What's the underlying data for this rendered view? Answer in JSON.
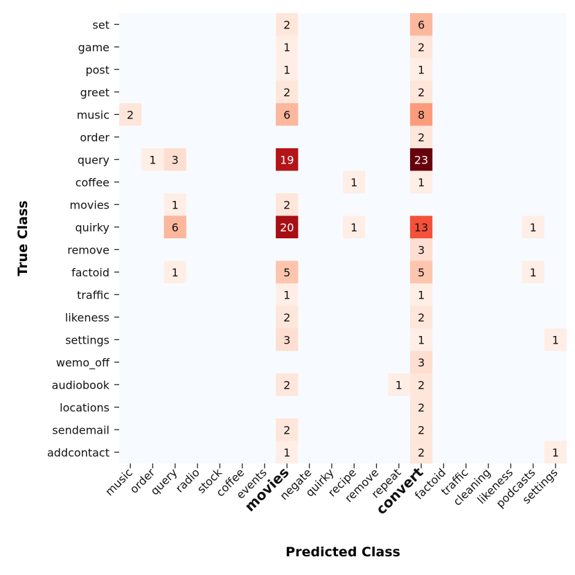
{
  "chart_data": {
    "type": "heatmap",
    "xlabel": "Predicted Class",
    "ylabel": "True Class",
    "x_categories": [
      "music",
      "order",
      "query",
      "radio",
      "stock",
      "coffee",
      "events",
      "movies",
      "negate",
      "quirky",
      "recipe",
      "remove",
      "repeat",
      "convert",
      "factoid",
      "traffic",
      "cleaning",
      "likeness",
      "podcasts",
      "settings"
    ],
    "y_categories": [
      "set",
      "game",
      "post",
      "greet",
      "music",
      "order",
      "query",
      "coffee",
      "movies",
      "quirky",
      "remove",
      "factoid",
      "traffic",
      "likeness",
      "settings",
      "wemo_off",
      "audiobook",
      "locations",
      "sendemail",
      "addcontact"
    ],
    "highlighted_x": [
      "movies",
      "convert"
    ],
    "highlight_color": "#ff0000",
    "colormap": "Reds",
    "background_color": "#f7fbff",
    "value_range": [
      0,
      23
    ],
    "cells": [
      {
        "x": "movies",
        "y": "set",
        "value": 2
      },
      {
        "x": "convert",
        "y": "set",
        "value": 6
      },
      {
        "x": "movies",
        "y": "game",
        "value": 1
      },
      {
        "x": "convert",
        "y": "game",
        "value": 2
      },
      {
        "x": "movies",
        "y": "post",
        "value": 1
      },
      {
        "x": "convert",
        "y": "post",
        "value": 1
      },
      {
        "x": "movies",
        "y": "greet",
        "value": 2
      },
      {
        "x": "convert",
        "y": "greet",
        "value": 2
      },
      {
        "x": "music",
        "y": "music",
        "value": 2
      },
      {
        "x": "movies",
        "y": "music",
        "value": 6
      },
      {
        "x": "convert",
        "y": "music",
        "value": 8
      },
      {
        "x": "convert",
        "y": "order",
        "value": 2
      },
      {
        "x": "order",
        "y": "query",
        "value": 1
      },
      {
        "x": "query",
        "y": "query",
        "value": 3
      },
      {
        "x": "movies",
        "y": "query",
        "value": 19
      },
      {
        "x": "convert",
        "y": "query",
        "value": 23
      },
      {
        "x": "recipe",
        "y": "coffee",
        "value": 1
      },
      {
        "x": "convert",
        "y": "coffee",
        "value": 1
      },
      {
        "x": "query",
        "y": "movies",
        "value": 1
      },
      {
        "x": "movies",
        "y": "movies",
        "value": 2
      },
      {
        "x": "query",
        "y": "quirky",
        "value": 6
      },
      {
        "x": "movies",
        "y": "quirky",
        "value": 20
      },
      {
        "x": "recipe",
        "y": "quirky",
        "value": 1
      },
      {
        "x": "convert",
        "y": "quirky",
        "value": 13
      },
      {
        "x": "podcasts",
        "y": "quirky",
        "value": 1
      },
      {
        "x": "convert",
        "y": "remove",
        "value": 3
      },
      {
        "x": "query",
        "y": "factoid",
        "value": 1
      },
      {
        "x": "movies",
        "y": "factoid",
        "value": 5
      },
      {
        "x": "convert",
        "y": "factoid",
        "value": 5
      },
      {
        "x": "podcasts",
        "y": "factoid",
        "value": 1
      },
      {
        "x": "movies",
        "y": "traffic",
        "value": 1
      },
      {
        "x": "convert",
        "y": "traffic",
        "value": 1
      },
      {
        "x": "movies",
        "y": "likeness",
        "value": 2
      },
      {
        "x": "convert",
        "y": "likeness",
        "value": 2
      },
      {
        "x": "movies",
        "y": "settings",
        "value": 3
      },
      {
        "x": "convert",
        "y": "settings",
        "value": 1
      },
      {
        "x": "settings",
        "y": "settings",
        "value": 1
      },
      {
        "x": "convert",
        "y": "wemo_off",
        "value": 3
      },
      {
        "x": "movies",
        "y": "audiobook",
        "value": 2
      },
      {
        "x": "repeat",
        "y": "audiobook",
        "value": 1
      },
      {
        "x": "convert",
        "y": "audiobook",
        "value": 2
      },
      {
        "x": "convert",
        "y": "locations",
        "value": 2
      },
      {
        "x": "movies",
        "y": "sendemail",
        "value": 2
      },
      {
        "x": "convert",
        "y": "sendemail",
        "value": 2
      },
      {
        "x": "movies",
        "y": "addcontact",
        "value": 1
      },
      {
        "x": "convert",
        "y": "addcontact",
        "value": 2
      },
      {
        "x": "settings",
        "y": "addcontact",
        "value": 1
      }
    ]
  }
}
